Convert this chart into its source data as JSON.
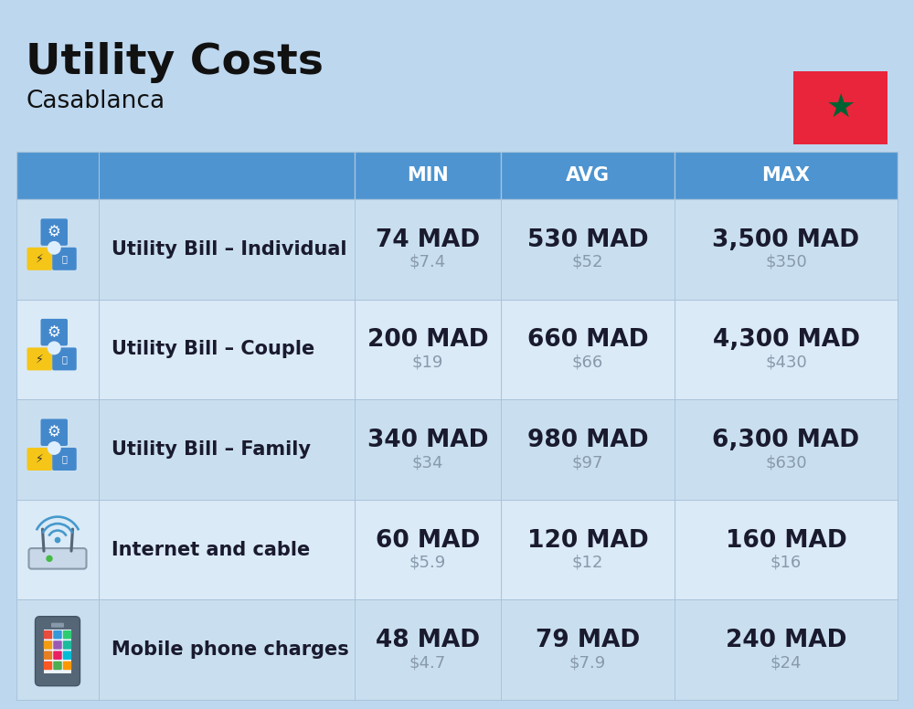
{
  "title": "Utility Costs",
  "subtitle": "Casablanca",
  "background_color": "#bdd7ee",
  "header_bg_color": "#4d94d0",
  "header_text_color": "#ffffff",
  "row_bg_odd": "#c9dff0",
  "row_bg_even": "#daeaf7",
  "cell_line_color": "#a8c4dc",
  "columns": [
    "MIN",
    "AVG",
    "MAX"
  ],
  "rows": [
    {
      "label": "Utility Bill – Individual",
      "icon": "utility",
      "min_mad": "74 MAD",
      "min_usd": "$7.4",
      "avg_mad": "530 MAD",
      "avg_usd": "$52",
      "max_mad": "3,500 MAD",
      "max_usd": "$350"
    },
    {
      "label": "Utility Bill – Couple",
      "icon": "utility",
      "min_mad": "200 MAD",
      "min_usd": "$19",
      "avg_mad": "660 MAD",
      "avg_usd": "$66",
      "max_mad": "4,300 MAD",
      "max_usd": "$430"
    },
    {
      "label": "Utility Bill – Family",
      "icon": "utility",
      "min_mad": "340 MAD",
      "min_usd": "$34",
      "avg_mad": "980 MAD",
      "avg_usd": "$97",
      "max_mad": "6,300 MAD",
      "max_usd": "$630"
    },
    {
      "label": "Internet and cable",
      "icon": "internet",
      "min_mad": "60 MAD",
      "min_usd": "$5.9",
      "avg_mad": "120 MAD",
      "avg_usd": "$12",
      "max_mad": "160 MAD",
      "max_usd": "$16"
    },
    {
      "label": "Mobile phone charges",
      "icon": "mobile",
      "min_mad": "48 MAD",
      "min_usd": "$4.7",
      "avg_mad": "79 MAD",
      "avg_usd": "$7.9",
      "max_mad": "240 MAD",
      "max_usd": "$24"
    }
  ],
  "title_fontsize": 34,
  "subtitle_fontsize": 19,
  "header_fontsize": 15,
  "label_fontsize": 15,
  "value_mad_fontsize": 19,
  "value_usd_fontsize": 13,
  "flag_red": "#e8253a",
  "flag_green": "#006233",
  "mad_color": "#1a1a2e",
  "usd_color": "#8899aa"
}
